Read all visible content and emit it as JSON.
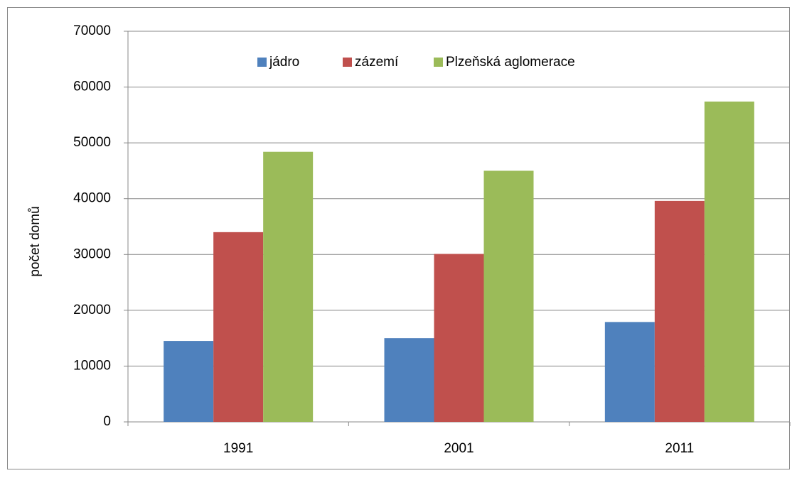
{
  "chart_data": {
    "type": "bar",
    "y_label": "počet domů",
    "categories": [
      "1991",
      "2001",
      "2011"
    ],
    "series": [
      {
        "name": "jádro",
        "color": "#4f81bd",
        "values": [
          14500,
          15000,
          17900
        ]
      },
      {
        "name": "zázemí",
        "color": "#c0504d",
        "values": [
          34000,
          30100,
          39600
        ]
      },
      {
        "name": "Plzeňská aglomerace",
        "color": "#9bbb59",
        "values": [
          48400,
          45000,
          57400
        ]
      }
    ],
    "ylim": [
      0,
      70000
    ],
    "yticks": [
      0,
      10000,
      20000,
      30000,
      40000,
      50000,
      60000,
      70000
    ],
    "grid": true,
    "legend": "top"
  }
}
